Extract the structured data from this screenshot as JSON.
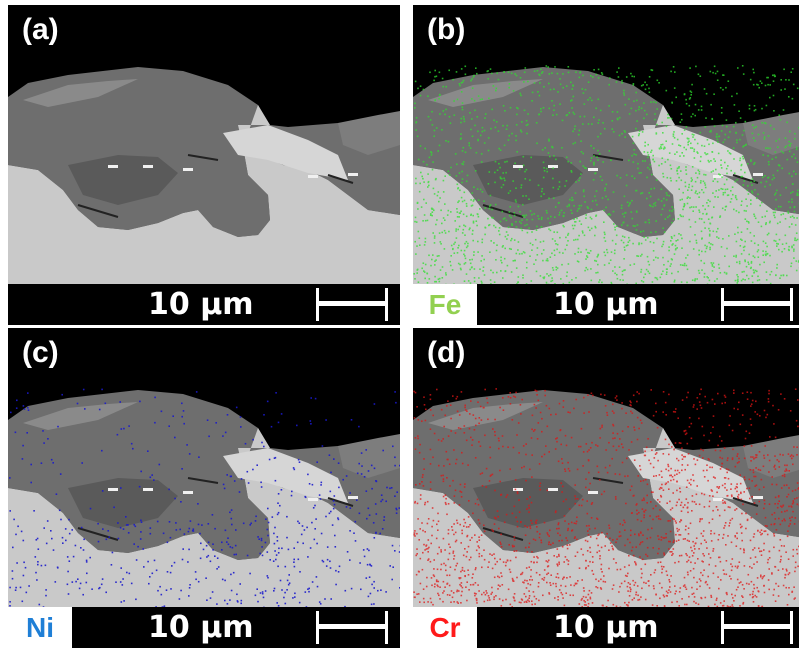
{
  "panels": [
    {
      "id": "a",
      "label": "(a)",
      "element": "",
      "element_color": "",
      "overlay": "",
      "scale_text": "10 µm"
    },
    {
      "id": "b",
      "label": "(b)",
      "element": "Fe",
      "element_color": "#92d050",
      "overlay": "#2fe02f",
      "scale_text": "10 µm"
    },
    {
      "id": "c",
      "label": "(c)",
      "element": "Ni",
      "element_color": "#1f7fd6",
      "overlay": "#1a1acc",
      "scale_text": "10 µm"
    },
    {
      "id": "d",
      "label": "(d)",
      "element": "Cr",
      "element_color": "#ff1a1a",
      "overlay": "#e01414",
      "scale_text": "10 µm"
    }
  ]
}
